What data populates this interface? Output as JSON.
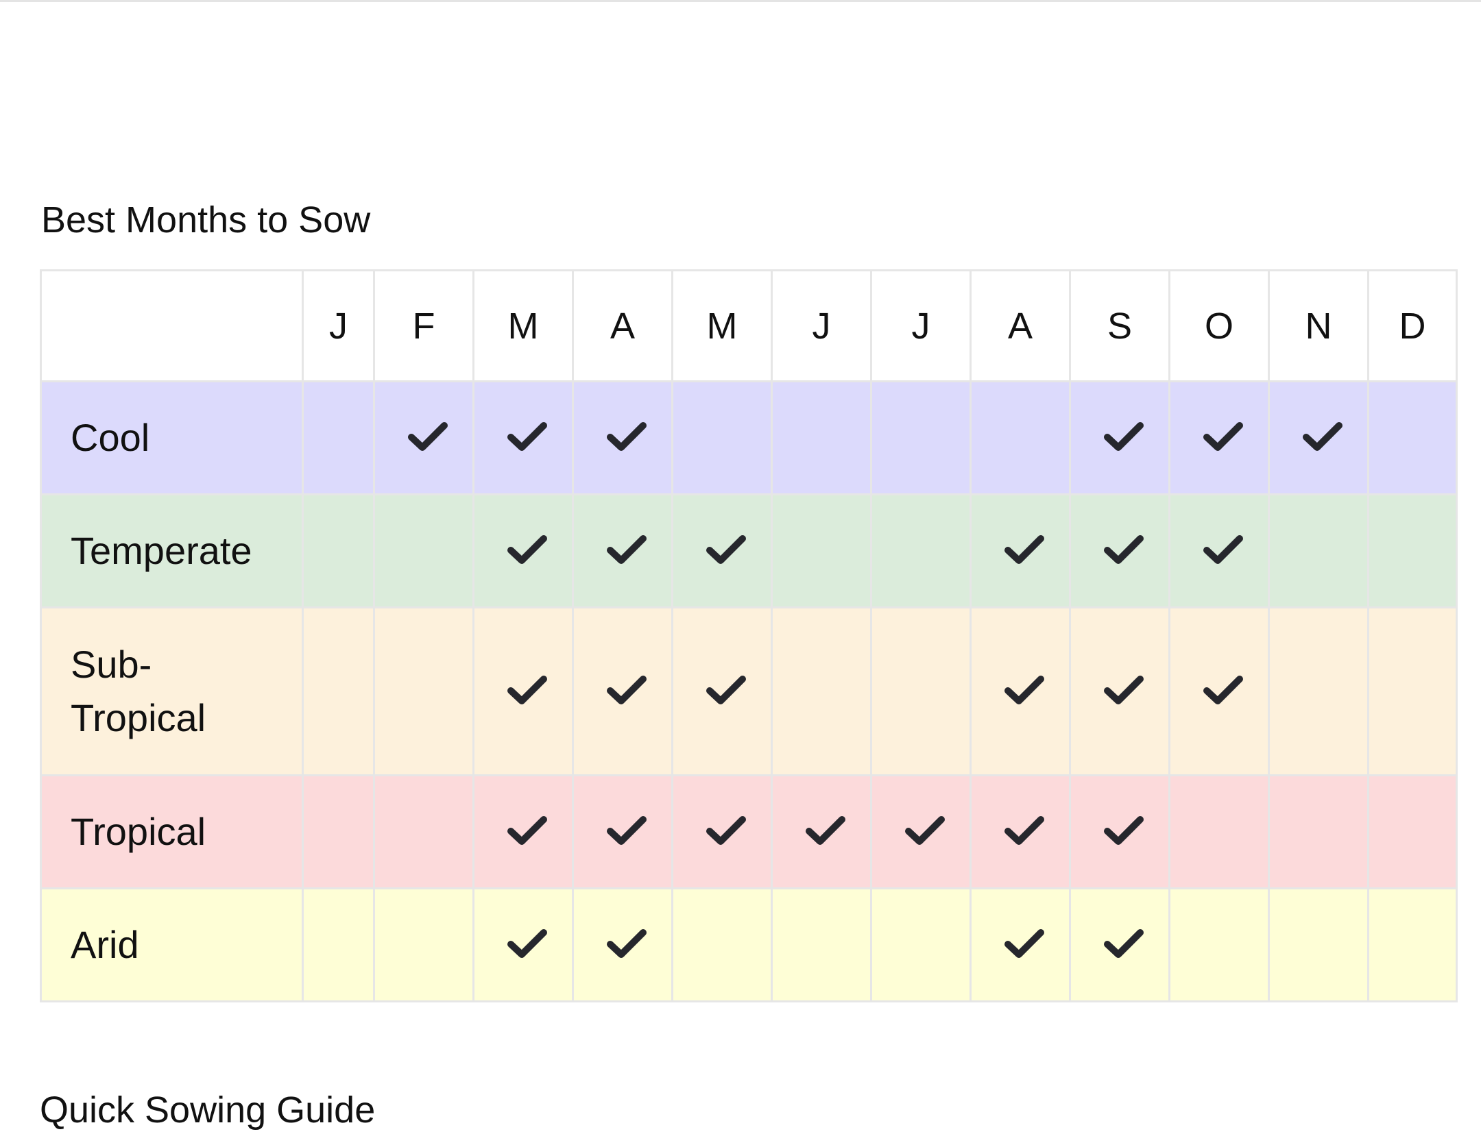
{
  "title": "Best Months to Sow",
  "months": [
    "J",
    "F",
    "M",
    "A",
    "M",
    "J",
    "J",
    "A",
    "S",
    "O",
    "N",
    "D"
  ],
  "check_icon": "checkmark-icon",
  "zones": [
    {
      "label": "Cool",
      "color": "#dcdafc",
      "months": [
        false,
        true,
        true,
        true,
        false,
        false,
        false,
        false,
        true,
        true,
        true,
        false
      ]
    },
    {
      "label": "Temperate",
      "color": "#dbecdb",
      "months": [
        false,
        false,
        true,
        true,
        true,
        false,
        false,
        true,
        true,
        true,
        false,
        false
      ]
    },
    {
      "label": "Sub-\nTropical",
      "color": "#fdf1dc",
      "months": [
        false,
        false,
        true,
        true,
        true,
        false,
        false,
        true,
        true,
        true,
        false,
        false
      ]
    },
    {
      "label": "Tropical",
      "color": "#fcdadb",
      "months": [
        false,
        false,
        true,
        true,
        true,
        true,
        true,
        true,
        true,
        false,
        false,
        false
      ]
    },
    {
      "label": "Arid",
      "color": "#fefed6",
      "months": [
        false,
        false,
        true,
        true,
        false,
        false,
        false,
        true,
        true,
        false,
        false,
        false
      ]
    }
  ],
  "next_heading": "Quick Sowing Guide"
}
